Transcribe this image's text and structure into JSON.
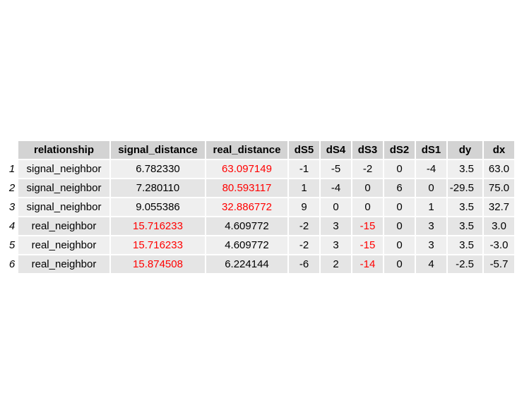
{
  "table": {
    "columns": [
      "relationship",
      "signal_distance",
      "real_distance",
      "dS5",
      "dS4",
      "dS3",
      "dS2",
      "dS1",
      "dy",
      "dx"
    ],
    "rows": [
      {
        "index": "1",
        "relationship": "signal_neighbor",
        "signal_distance": "6.782330",
        "real_distance": "63.097149",
        "dS5": "-1",
        "dS4": "-5",
        "dS3": "-2",
        "dS2": "0",
        "dS1": "-4",
        "dy": "3.5",
        "dx": "63.0"
      },
      {
        "index": "2",
        "relationship": "signal_neighbor",
        "signal_distance": "7.280110",
        "real_distance": "80.593117",
        "dS5": "1",
        "dS4": "-4",
        "dS3": "0",
        "dS2": "6",
        "dS1": "0",
        "dy": "-29.5",
        "dx": "75.0"
      },
      {
        "index": "3",
        "relationship": "signal_neighbor",
        "signal_distance": "9.055386",
        "real_distance": "32.886772",
        "dS5": "9",
        "dS4": "0",
        "dS3": "0",
        "dS2": "0",
        "dS1": "1",
        "dy": "3.5",
        "dx": "32.7"
      },
      {
        "index": "4",
        "relationship": "real_neighbor",
        "signal_distance": "15.716233",
        "real_distance": "4.609772",
        "dS5": "-2",
        "dS4": "3",
        "dS3": "-15",
        "dS2": "0",
        "dS1": "3",
        "dy": "3.5",
        "dx": "3.0"
      },
      {
        "index": "5",
        "relationship": "real_neighbor",
        "signal_distance": "15.716233",
        "real_distance": "4.609772",
        "dS5": "-2",
        "dS4": "3",
        "dS3": "-15",
        "dS2": "0",
        "dS1": "3",
        "dy": "3.5",
        "dx": "-3.0"
      },
      {
        "index": "6",
        "relationship": "real_neighbor",
        "signal_distance": "15.874508",
        "real_distance": "6.224144",
        "dS5": "-6",
        "dS4": "2",
        "dS3": "-14",
        "dS2": "0",
        "dS1": "4",
        "dy": "-2.5",
        "dx": "-5.7"
      }
    ]
  },
  "colors": {
    "header_bg": "#d3d3d3",
    "row_odd_bg": "#efefef",
    "row_even_bg": "#e5e5e5",
    "highlight_text": "#ff0000"
  }
}
